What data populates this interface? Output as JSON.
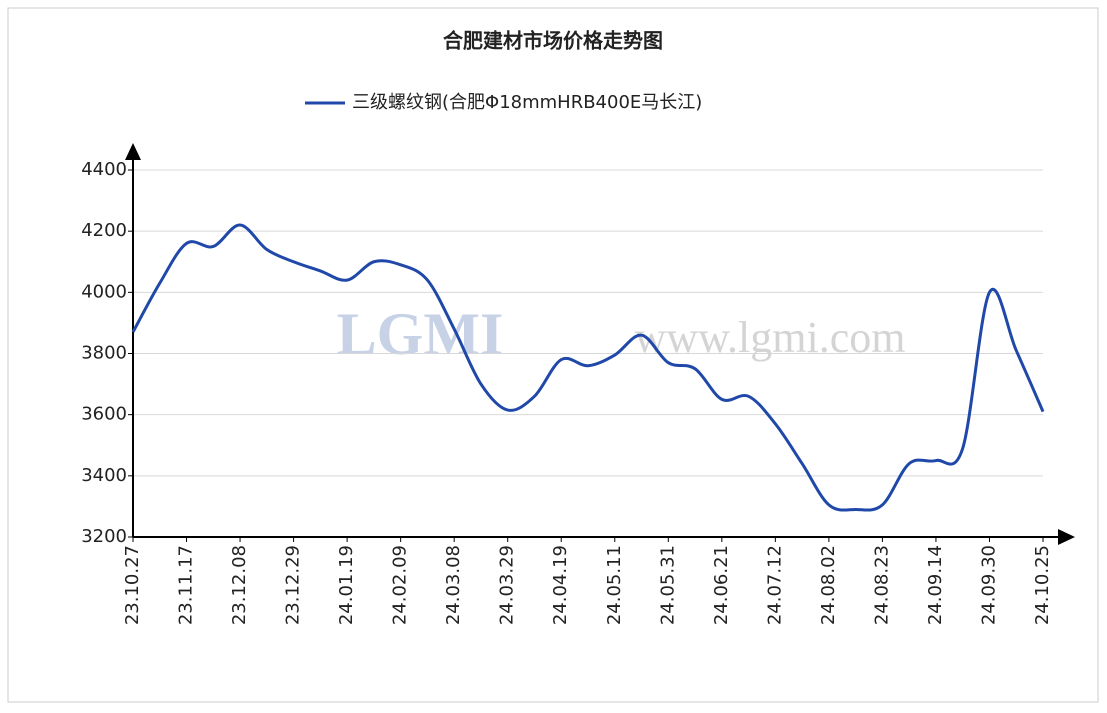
{
  "chart_data": {
    "type": "line",
    "title": "合肥建材市场价格走势图",
    "watermark": [
      "LGMI",
      "www.lgmi.com"
    ],
    "categories": [
      "23.10.27",
      null,
      "23.11.17",
      null,
      "23.12.08",
      null,
      "23.12.29",
      null,
      "24.01.19",
      null,
      "24.02.09",
      null,
      "24.03.08",
      null,
      "24.03.29",
      null,
      "24.04.19",
      null,
      "24.05.11",
      null,
      "24.05.31",
      null,
      "24.06.21",
      null,
      "24.07.12",
      null,
      "24.08.02",
      null,
      "24.08.23",
      null,
      "24.09.14",
      null,
      "24.09.30",
      null,
      "24.10.25"
    ],
    "series": [
      {
        "name": "三级螺纹钢(合肥Φ18mmHRB400E马长江)",
        "color": "#1f48a8",
        "values": [
          3870,
          4030,
          4160,
          4150,
          4220,
          4140,
          4100,
          4070,
          4040,
          4100,
          4090,
          4040,
          3880,
          3700,
          3615,
          3660,
          3780,
          3760,
          3795,
          3860,
          3770,
          3750,
          3650,
          3660,
          3570,
          3440,
          3305,
          3290,
          3305,
          3440,
          3450,
          3490,
          4000,
          3810,
          3610
        ]
      }
    ],
    "ylim": [
      3200,
      4400
    ],
    "yticks": [
      3200,
      3400,
      3600,
      3800,
      4000,
      4200,
      4400
    ],
    "grid": true
  }
}
